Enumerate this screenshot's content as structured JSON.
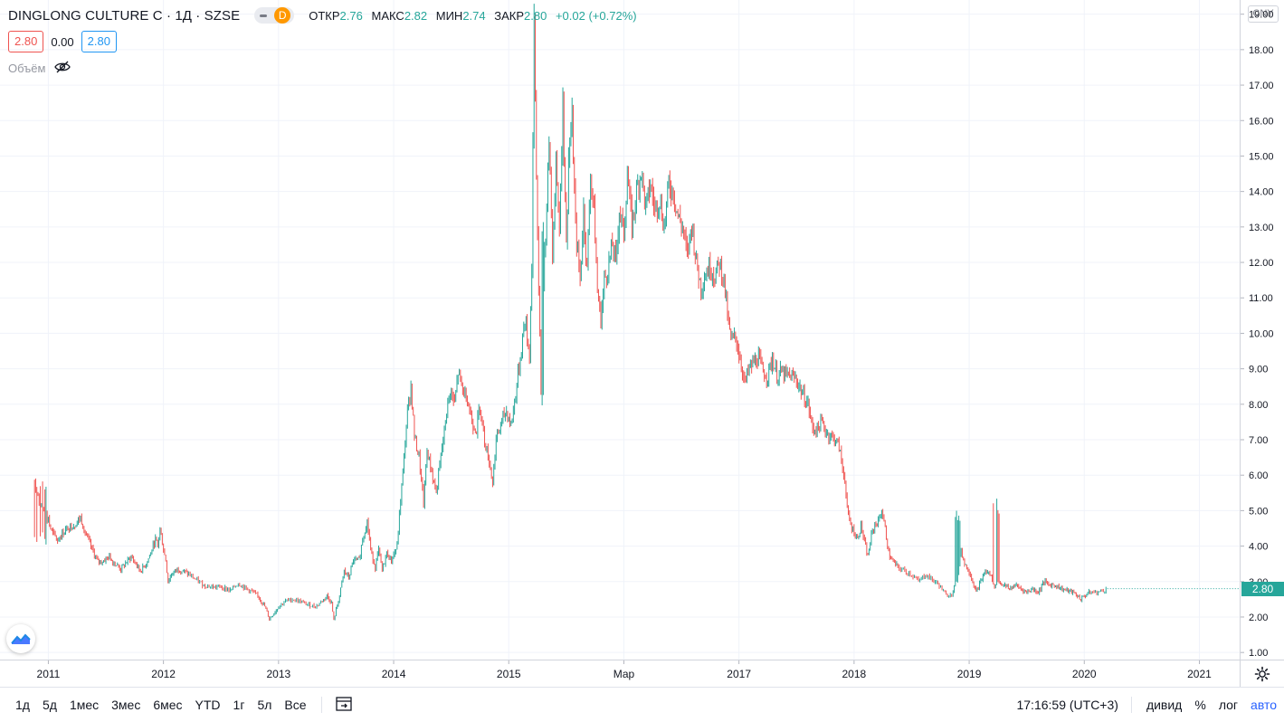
{
  "legend": {
    "symbol": "DINGLONG CULTURE C · 1Д · SZSE",
    "badge": "D",
    "ohlc": [
      {
        "label": "ОТКР",
        "value": "2.76"
      },
      {
        "label": "МАКС",
        "value": "2.82"
      },
      {
        "label": "МИН",
        "value": "2.74"
      },
      {
        "label": "ЗАКР",
        "value": "2.80"
      }
    ],
    "change": "+0.02 (+0.72%)",
    "bid": "2.80",
    "spread": "0.00",
    "ask": "2.80",
    "volume_label": "Объём"
  },
  "colors": {
    "up": "#26a69a",
    "down": "#ef5350",
    "accent": "#2962ff",
    "grid": "#f0f3fa"
  },
  "price_scale": {
    "currency": "CNY",
    "labels": [
      "1.00",
      "2.00",
      "3.00",
      "4.00",
      "5.00",
      "6.00",
      "7.00",
      "8.00",
      "9.00",
      "10.00",
      "11.00",
      "12.00",
      "13.00",
      "14.00",
      "15.00",
      "16.00",
      "17.00",
      "18.00",
      "19.00"
    ],
    "last_value": "2.80"
  },
  "time_scale": {
    "labels": [
      "2011",
      "2012",
      "2013",
      "2014",
      "2015",
      "Мар",
      "2017",
      "2018",
      "2019",
      "2020",
      "2021"
    ]
  },
  "toolbar": {
    "ranges": [
      "1д",
      "5д",
      "1мес",
      "3мес",
      "6мес",
      "YTD",
      "1г",
      "5л",
      "Все"
    ],
    "clock": "17:16:59 (UTC+3)",
    "dividends": "дивид",
    "percent": "%",
    "log": "лог",
    "auto": "авто"
  },
  "chart_data": {
    "type": "candlestick",
    "title": "DINGLONG CULTURE C · 1Д · SZSE",
    "x_unit": "year",
    "y_unit": "CNY",
    "ylim": [
      0.8,
      19.4
    ],
    "grid": true,
    "points": [
      [
        2010.88,
        5.8
      ],
      [
        2010.93,
        5.2
      ],
      [
        2010.98,
        4.9
      ],
      [
        2011.03,
        4.4
      ],
      [
        2011.08,
        4.15
      ],
      [
        2011.13,
        4.4
      ],
      [
        2011.18,
        4.55
      ],
      [
        2011.23,
        4.6
      ],
      [
        2011.28,
        4.8
      ],
      [
        2011.33,
        4.3
      ],
      [
        2011.38,
        3.9
      ],
      [
        2011.43,
        3.55
      ],
      [
        2011.48,
        3.6
      ],
      [
        2011.53,
        3.7
      ],
      [
        2011.58,
        3.5
      ],
      [
        2011.63,
        3.35
      ],
      [
        2011.68,
        3.55
      ],
      [
        2011.72,
        3.7
      ],
      [
        2011.76,
        3.5
      ],
      [
        2011.8,
        3.3
      ],
      [
        2011.85,
        3.5
      ],
      [
        2011.89,
        3.8
      ],
      [
        2011.93,
        4.2
      ],
      [
        2011.95,
        4.0
      ],
      [
        2011.97,
        4.5
      ],
      [
        2012.0,
        3.9
      ],
      [
        2012.02,
        3.6
      ],
      [
        2012.04,
        3.0
      ],
      [
        2012.07,
        3.2
      ],
      [
        2012.12,
        3.35
      ],
      [
        2012.17,
        3.3
      ],
      [
        2012.22,
        3.2
      ],
      [
        2012.28,
        3.05
      ],
      [
        2012.35,
        2.9
      ],
      [
        2012.42,
        2.85
      ],
      [
        2012.5,
        2.85
      ],
      [
        2012.58,
        2.75
      ],
      [
        2012.65,
        2.95
      ],
      [
        2012.72,
        2.8
      ],
      [
        2012.78,
        2.7
      ],
      [
        2012.83,
        2.55
      ],
      [
        2012.88,
        2.3
      ],
      [
        2012.92,
        1.95
      ],
      [
        2012.96,
        2.1
      ],
      [
        2013.0,
        2.3
      ],
      [
        2013.06,
        2.45
      ],
      [
        2013.12,
        2.5
      ],
      [
        2013.18,
        2.45
      ],
      [
        2013.25,
        2.35
      ],
      [
        2013.32,
        2.3
      ],
      [
        2013.38,
        2.45
      ],
      [
        2013.42,
        2.6
      ],
      [
        2013.46,
        2.4
      ],
      [
        2013.48,
        1.9
      ],
      [
        2013.5,
        2.2
      ],
      [
        2013.53,
        2.6
      ],
      [
        2013.57,
        3.3
      ],
      [
        2013.61,
        3.1
      ],
      [
        2013.65,
        3.6
      ],
      [
        2013.7,
        3.6
      ],
      [
        2013.73,
        4.2
      ],
      [
        2013.77,
        4.7
      ],
      [
        2013.8,
        3.9
      ],
      [
        2013.84,
        3.4
      ],
      [
        2013.87,
        3.9
      ],
      [
        2013.9,
        3.3
      ],
      [
        2013.94,
        3.8
      ],
      [
        2013.98,
        3.6
      ],
      [
        2014.03,
        4.0
      ],
      [
        2014.06,
        5.3
      ],
      [
        2014.09,
        6.5
      ],
      [
        2014.12,
        7.8
      ],
      [
        2014.15,
        8.5
      ],
      [
        2014.18,
        7.1
      ],
      [
        2014.22,
        6.5
      ],
      [
        2014.26,
        5.2
      ],
      [
        2014.29,
        6.7
      ],
      [
        2014.33,
        6.1
      ],
      [
        2014.37,
        5.5
      ],
      [
        2014.41,
        6.5
      ],
      [
        2014.45,
        7.5
      ],
      [
        2014.49,
        8.4
      ],
      [
        2014.53,
        8.0
      ],
      [
        2014.56,
        8.9
      ],
      [
        2014.6,
        8.4
      ],
      [
        2014.64,
        8.2
      ],
      [
        2014.68,
        7.5
      ],
      [
        2014.72,
        7.3
      ],
      [
        2014.75,
        8.0
      ],
      [
        2014.79,
        7.0
      ],
      [
        2014.83,
        6.4
      ],
      [
        2014.86,
        5.8
      ],
      [
        2014.89,
        7.0
      ],
      [
        2014.92,
        7.3
      ],
      [
        2014.95,
        7.6
      ],
      [
        2014.98,
        7.8
      ],
      [
        2015.02,
        7.4
      ],
      [
        2015.06,
        8.3
      ],
      [
        2015.1,
        9.3
      ],
      [
        2015.14,
        10.4
      ],
      [
        2015.18,
        9.4
      ],
      [
        2015.2,
        12.0
      ],
      [
        2015.22,
        18.9
      ],
      [
        2015.24,
        14.5
      ],
      [
        2015.26,
        11.5
      ],
      [
        2015.28,
        8.2
      ],
      [
        2015.3,
        11.5
      ],
      [
        2015.33,
        13.6
      ],
      [
        2015.35,
        15.6
      ],
      [
        2015.38,
        12.0
      ],
      [
        2015.41,
        14.8
      ],
      [
        2015.44,
        13.0
      ],
      [
        2015.47,
        16.6
      ],
      [
        2015.5,
        12.5
      ],
      [
        2015.52,
        15.0
      ],
      [
        2015.55,
        16.0
      ],
      [
        2015.58,
        13.0
      ],
      [
        2015.62,
        11.5
      ],
      [
        2015.65,
        13.5
      ],
      [
        2015.68,
        11.8
      ],
      [
        2015.71,
        14.5
      ],
      [
        2015.74,
        13.5
      ],
      [
        2015.77,
        11.2
      ],
      [
        2015.8,
        10.4
      ],
      [
        2015.83,
        11.5
      ],
      [
        2015.86,
        11.8
      ],
      [
        2015.9,
        12.5
      ],
      [
        2015.93,
        12.0
      ],
      [
        2015.96,
        13.5
      ],
      [
        2016.0,
        12.8
      ],
      [
        2016.03,
        14.5
      ],
      [
        2016.07,
        13.0
      ],
      [
        2016.11,
        14.0
      ],
      [
        2016.15,
        14.6
      ],
      [
        2016.19,
        13.5
      ],
      [
        2016.23,
        14.2
      ],
      [
        2016.27,
        13.5
      ],
      [
        2016.31,
        13.8
      ],
      [
        2016.35,
        13.0
      ],
      [
        2016.39,
        14.2
      ],
      [
        2016.43,
        14.0
      ],
      [
        2016.47,
        13.3
      ],
      [
        2016.51,
        13.0
      ],
      [
        2016.55,
        12.2
      ],
      [
        2016.59,
        13.1
      ],
      [
        2016.63,
        12.0
      ],
      [
        2016.67,
        11.3
      ],
      [
        2016.71,
        11.7
      ],
      [
        2016.75,
        11.9
      ],
      [
        2016.79,
        11.6
      ],
      [
        2016.83,
        12.0
      ],
      [
        2016.87,
        11.5
      ],
      [
        2016.9,
        10.5
      ],
      [
        2016.93,
        9.8
      ],
      [
        2016.97,
        9.9
      ],
      [
        2017.01,
        9.3
      ],
      [
        2017.05,
        8.6
      ],
      [
        2017.09,
        9.0
      ],
      [
        2017.13,
        9.2
      ],
      [
        2017.17,
        9.3
      ],
      [
        2017.21,
        8.9
      ],
      [
        2017.25,
        8.8
      ],
      [
        2017.29,
        9.3
      ],
      [
        2017.33,
        8.8
      ],
      [
        2017.37,
        8.9
      ],
      [
        2017.41,
        8.8
      ],
      [
        2017.45,
        8.8
      ],
      [
        2017.5,
        8.7
      ],
      [
        2017.55,
        8.3
      ],
      [
        2017.6,
        8.0
      ],
      [
        2017.64,
        7.3
      ],
      [
        2017.68,
        7.3
      ],
      [
        2017.72,
        7.5
      ],
      [
        2017.76,
        7.2
      ],
      [
        2017.8,
        7.1
      ],
      [
        2017.84,
        7.0
      ],
      [
        2017.87,
        6.8
      ],
      [
        2017.9,
        6.2
      ],
      [
        2017.92,
        5.9
      ],
      [
        2017.94,
        5.0
      ],
      [
        2017.97,
        4.6
      ],
      [
        2018.0,
        4.4
      ],
      [
        2018.03,
        4.2
      ],
      [
        2018.06,
        4.6
      ],
      [
        2018.09,
        4.1
      ],
      [
        2018.12,
        3.7
      ],
      [
        2018.15,
        4.3
      ],
      [
        2018.18,
        4.6
      ],
      [
        2018.21,
        4.7
      ],
      [
        2018.24,
        5.0
      ],
      [
        2018.27,
        4.5
      ],
      [
        2018.3,
        3.8
      ],
      [
        2018.33,
        3.6
      ],
      [
        2018.38,
        3.4
      ],
      [
        2018.44,
        3.3
      ],
      [
        2018.5,
        3.2
      ],
      [
        2018.56,
        3.0
      ],
      [
        2018.62,
        3.2
      ],
      [
        2018.68,
        3.05
      ],
      [
        2018.74,
        2.9
      ],
      [
        2018.8,
        2.6
      ],
      [
        2018.86,
        2.7
      ],
      [
        2018.9,
        3.2
      ],
      [
        2018.93,
        3.9
      ],
      [
        2018.96,
        3.5
      ],
      [
        2019.0,
        3.3
      ],
      [
        2019.03,
        3.0
      ],
      [
        2019.06,
        2.7
      ],
      [
        2019.1,
        3.0
      ],
      [
        2019.14,
        3.3
      ],
      [
        2019.18,
        3.2
      ],
      [
        2019.22,
        2.9
      ],
      [
        2019.26,
        3.0
      ],
      [
        2019.3,
        2.9
      ],
      [
        2019.35,
        2.8
      ],
      [
        2019.4,
        2.9
      ],
      [
        2019.45,
        2.8
      ],
      [
        2019.5,
        2.7
      ],
      [
        2019.55,
        2.8
      ],
      [
        2019.6,
        2.7
      ],
      [
        2019.65,
        3.0
      ],
      [
        2019.7,
        2.9
      ],
      [
        2019.75,
        2.9
      ],
      [
        2019.8,
        2.8
      ],
      [
        2019.85,
        2.75
      ],
      [
        2019.9,
        2.7
      ],
      [
        2019.94,
        2.6
      ],
      [
        2019.97,
        2.5
      ],
      [
        2020.0,
        2.6
      ],
      [
        2020.05,
        2.7
      ],
      [
        2020.12,
        2.7
      ],
      [
        2020.2,
        2.8
      ]
    ],
    "candle_ranges": [
      {
        "from": 2010.88,
        "to": 2011.0,
        "high": 5.9,
        "low": 4.0
      },
      {
        "from": 2015.2,
        "to": 2015.24,
        "high": 19.0,
        "low": 12.5
      },
      {
        "from": 2015.26,
        "to": 2015.3,
        "high": 13.2,
        "low": 7.8
      },
      {
        "from": 2018.88,
        "to": 2018.92,
        "high": 5.0,
        "low": 3.8
      },
      {
        "from": 2019.2,
        "to": 2019.26,
        "high": 5.4,
        "low": 4.6
      }
    ],
    "last": 2.8
  }
}
